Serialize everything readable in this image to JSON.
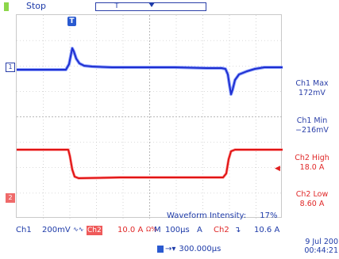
{
  "topbar": {
    "status": "Stop",
    "record_marker": "T"
  },
  "markers": {
    "trigger": "T",
    "ch1": "1",
    "ch2": "2",
    "ch2_trigger_arrow": "◀"
  },
  "measurements": [
    {
      "label": "Ch1 Max",
      "value": "172mV",
      "color": "#2a3fa8"
    },
    {
      "label": "Ch1 Min",
      "value": "−216mV",
      "color": "#2a3fa8"
    },
    {
      "label": "Ch2 High",
      "value": "18.0 A",
      "color": "#e02828"
    },
    {
      "label": "Ch2 Low",
      "value": "8.60 A",
      "color": "#e02828"
    }
  ],
  "waveform_intensity": {
    "label": "Waveform Intensity:",
    "value": "17%"
  },
  "status": {
    "ch1_label": "Ch1",
    "ch1_scale": "200mV",
    "ch1_coupling_icon": "bandwidth-icon",
    "ch1_coupling": "∿∿",
    "ch2_label": "Ch2",
    "ch2_scale": "10.0 A",
    "ch2_impedance": "Ω%",
    "m_label": "M",
    "timebase": "100µs",
    "acq_label": "A",
    "trigger_source": "Ch2",
    "trigger_slope": "↴",
    "trigger_level": "10.6 A"
  },
  "trigger_position": {
    "arrow": "→▾",
    "value": "300.000µs"
  },
  "datetime": {
    "date": "9 Jul  200",
    "time": "00:44:21"
  },
  "colors": {
    "ch1": "#1f2fcf",
    "ch2": "#e01414",
    "grid": "#b8b8b8"
  }
}
